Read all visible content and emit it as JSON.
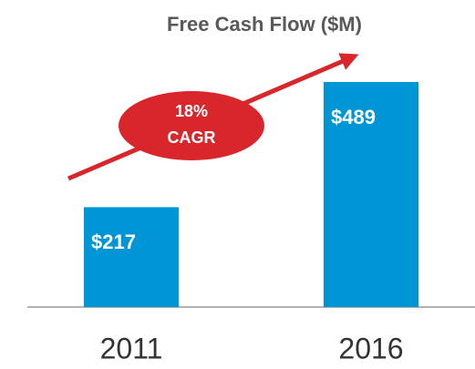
{
  "chart_data": {
    "type": "bar",
    "title": "Free Cash Flow ($M)",
    "categories": [
      "2011",
      "2016"
    ],
    "values": [
      217,
      489
    ],
    "value_labels": [
      "$217",
      "$489"
    ],
    "color": "#0096d6",
    "annotation": [
      "18%",
      "CAGR"
    ],
    "annotation_color": "#d9262a"
  }
}
